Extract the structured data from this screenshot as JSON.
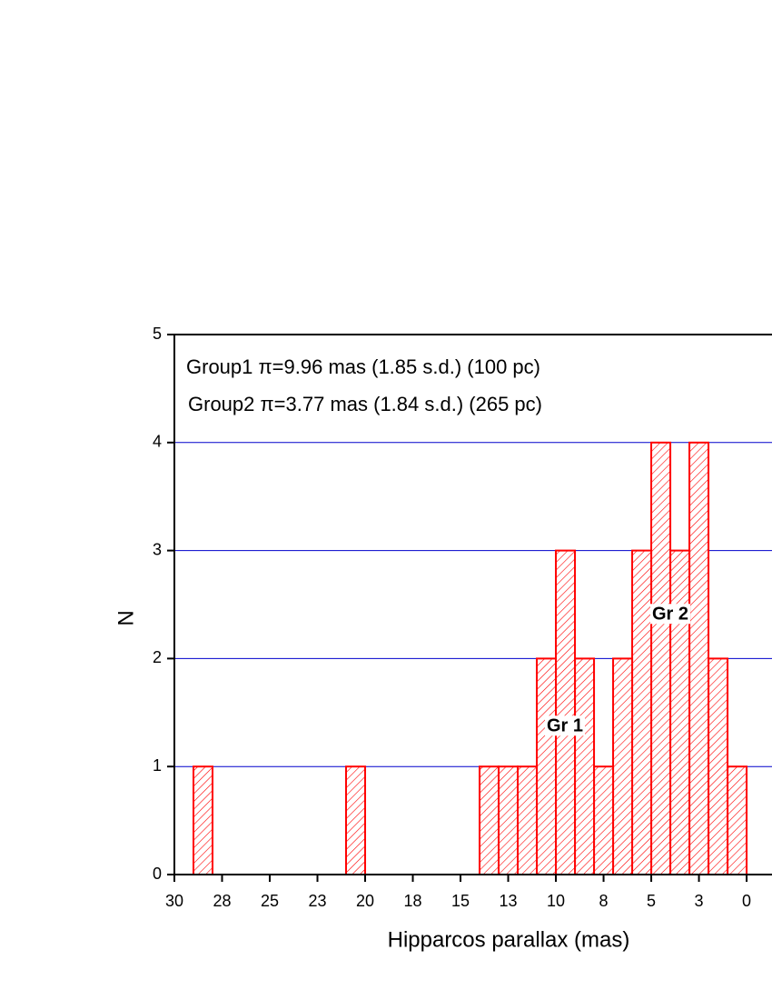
{
  "chart_data": {
    "type": "histogram",
    "x_label": "Hipparcos parallax (mas)",
    "y_label": "N",
    "annotations": [
      "Group1 π=9.96 mas (1.85 s.d.) (100 pc)",
      "Group2 π=3.77 mas (1.84 s.d.) (265 pc)",
      "Gr 1",
      "Gr 2"
    ],
    "bins": [
      0,
      1,
      2,
      3,
      4,
      5,
      6,
      7,
      8,
      9,
      10,
      11,
      12,
      13,
      14,
      15,
      16,
      17,
      18,
      19,
      20,
      21,
      22,
      23,
      24,
      25,
      26,
      27,
      28,
      29
    ],
    "counts": [
      1,
      2,
      4,
      3,
      4,
      3,
      2,
      1,
      2,
      3,
      2,
      1,
      1,
      1,
      0,
      0,
      0,
      0,
      0,
      0,
      1,
      0,
      0,
      0,
      0,
      0,
      0,
      0,
      1
    ],
    "color": "#ff0000",
    "grid_color": "#0000cc",
    "xlim": [
      30,
      -1.33
    ],
    "xticks": [
      30,
      {
        "value": 27.5,
        "label": "28"
      },
      25,
      {
        "value": 22.5,
        "label": "23"
      },
      20,
      {
        "value": 17.5,
        "label": "18"
      },
      15,
      {
        "value": 12.5,
        "label": "13"
      },
      10,
      {
        "value": 7.5,
        "label": "8"
      },
      5,
      {
        "value": 2.5,
        "label": "3"
      },
      0
    ],
    "ylim": [
      0,
      5
    ],
    "yticks": [
      0,
      1,
      2,
      3,
      4,
      5
    ],
    "grid": true
  }
}
